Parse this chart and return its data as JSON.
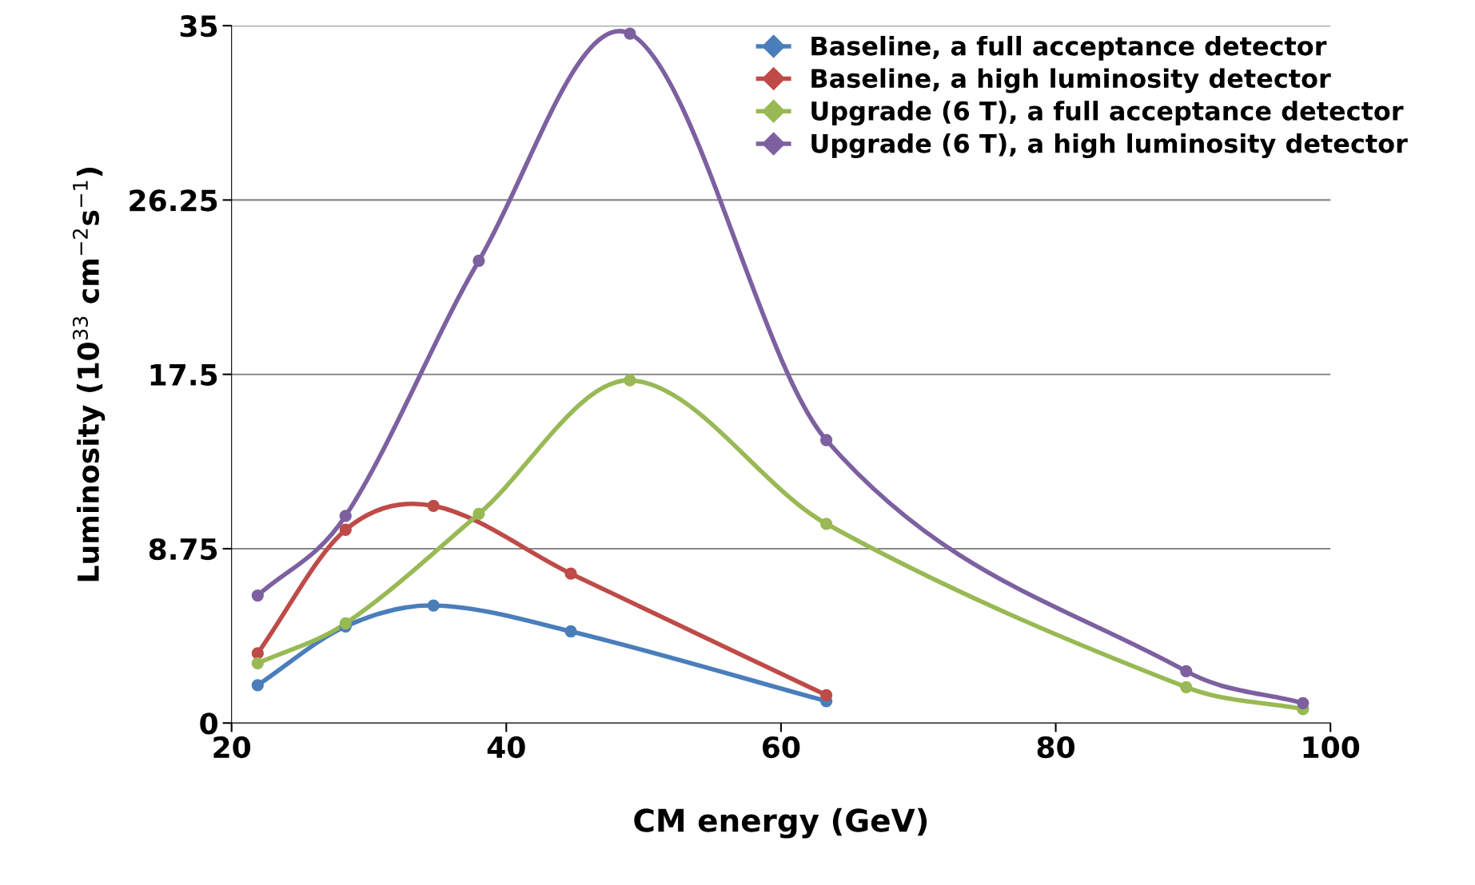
{
  "chart_data": {
    "type": "line",
    "xlabel": "CM energy (GeV)",
    "ylabel": "Luminosity (10$^{33}$ cm$^{−2}$s$^{−1}$)",
    "xlim": [
      20,
      100
    ],
    "xticks": [
      20,
      40,
      60,
      80,
      100
    ],
    "ylim": [
      0,
      35
    ],
    "yticks": [
      0,
      8.75,
      17.5,
      26.25,
      35
    ],
    "grid": "y",
    "legend": "top right",
    "marker": "circle",
    "line_style": "solid",
    "series": [
      {
        "name": "Baseline, a full acceptance detector",
        "color": "#4a7ebb",
        "x": [
          21.9,
          28.3,
          34.7,
          44.7,
          63.3
        ],
        "values": [
          1.9,
          4.85,
          5.9,
          4.6,
          1.1
        ]
      },
      {
        "name": "Baseline, a high luminosity detector",
        "color": "#be4b48",
        "x": [
          21.9,
          28.3,
          34.7,
          44.7,
          63.3
        ],
        "values": [
          3.5,
          9.7,
          10.9,
          7.5,
          1.4
        ]
      },
      {
        "name": "Upgrade (6 T), a full acceptance detector",
        "color": "#98b954",
        "x": [
          21.9,
          28.3,
          38.0,
          49.0,
          63.3,
          89.5,
          98.0
        ],
        "values": [
          3.0,
          5.0,
          10.5,
          17.2,
          10.0,
          1.8,
          0.7
        ]
      },
      {
        "name": "Upgrade (6 T), a high luminosity detector",
        "color": "#7d60a0",
        "x": [
          21.9,
          28.3,
          38.0,
          49.0,
          63.3,
          89.5,
          98.0
        ],
        "values": [
          6.4,
          10.4,
          23.2,
          34.6,
          14.2,
          2.6,
          1.0
        ]
      }
    ]
  }
}
